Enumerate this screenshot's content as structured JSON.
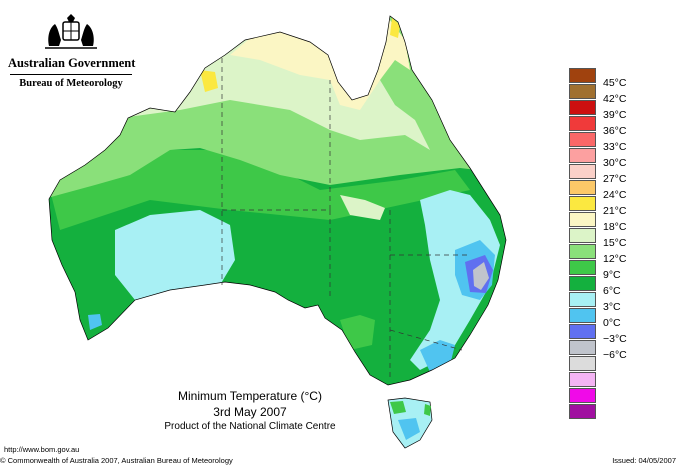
{
  "header": {
    "government": "Australian Government",
    "bureau": "Bureau of Meteorology"
  },
  "map": {
    "title": "Minimum Temperature (°C)",
    "date": "3rd May 2007",
    "product": "Product of the National Climate Centre"
  },
  "legend": {
    "items": [
      {
        "label": "45°C",
        "color": "#a0420e"
      },
      {
        "label": "42°C",
        "color": "#a07030"
      },
      {
        "label": "39°C",
        "color": "#cc1010"
      },
      {
        "label": "36°C",
        "color": "#f03a3a"
      },
      {
        "label": "33°C",
        "color": "#fa6868"
      },
      {
        "label": "30°C",
        "color": "#fca0a0"
      },
      {
        "label": "27°C",
        "color": "#fad0c8"
      },
      {
        "label": "24°C",
        "color": "#fbc868"
      },
      {
        "label": "21°C",
        "color": "#fbe840"
      },
      {
        "label": "18°C",
        "color": "#fbf6c4"
      },
      {
        "label": "15°C",
        "color": "#dcf4c8"
      },
      {
        "label": "12°C",
        "color": "#8ae07a"
      },
      {
        "label": "9°C",
        "color": "#3ec848"
      },
      {
        "label": "6°C",
        "color": "#14b03e"
      },
      {
        "label": "3°C",
        "color": "#a8f0f4"
      },
      {
        "label": "0°C",
        "color": "#50c4f0"
      },
      {
        "label": "−3°C",
        "color": "#6070f0"
      },
      {
        "label": "−6°C",
        "color": "#c0c4cc"
      },
      {
        "label": "",
        "color": "#dcdcdc"
      },
      {
        "label": "",
        "color": "#f4b4f4"
      },
      {
        "label": "",
        "color": "#f00ae8"
      },
      {
        "label": "",
        "color": "#a010a0"
      }
    ]
  },
  "footer": {
    "url": "http://www.bom.gov.au",
    "copyright": "© Commonwealth of Australia 2007, Australian Bureau of Meteorology",
    "issued": "Issued: 04/05/2007"
  }
}
